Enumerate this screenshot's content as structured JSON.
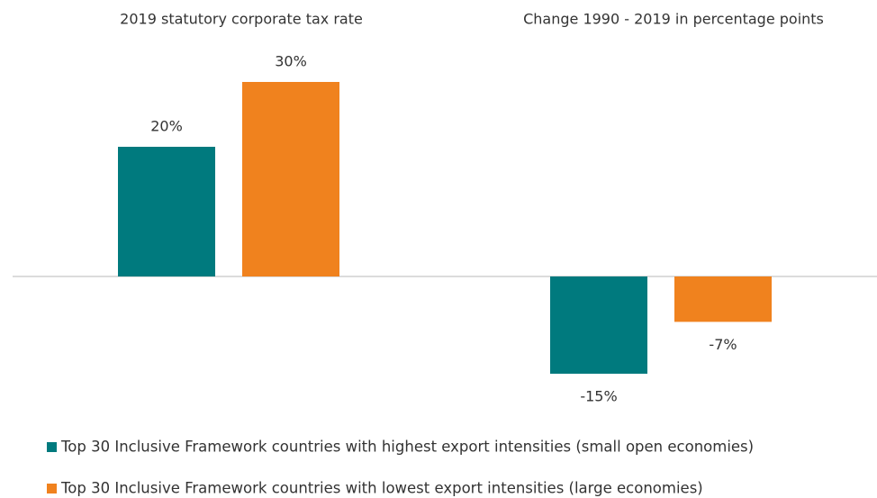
{
  "chart_data": {
    "type": "bar",
    "categories": [
      "2019 statutory corporate tax rate",
      "Change 1990 - 2019 in percentage points"
    ],
    "series": [
      {
        "name": "Top 30 Inclusive Framework countries with highest export intensities (small open economies)",
        "color": "#007a7e",
        "values": [
          20,
          -15
        ],
        "value_labels": [
          "20%",
          "-15%"
        ]
      },
      {
        "name": "Top 30 Inclusive Framework countries with lowest export intensities (large economies)",
        "color": "#f0821e",
        "values": [
          30,
          -7
        ],
        "value_labels": [
          "30%",
          "-7%"
        ]
      }
    ],
    "ylim": [
      -20,
      35
    ]
  }
}
